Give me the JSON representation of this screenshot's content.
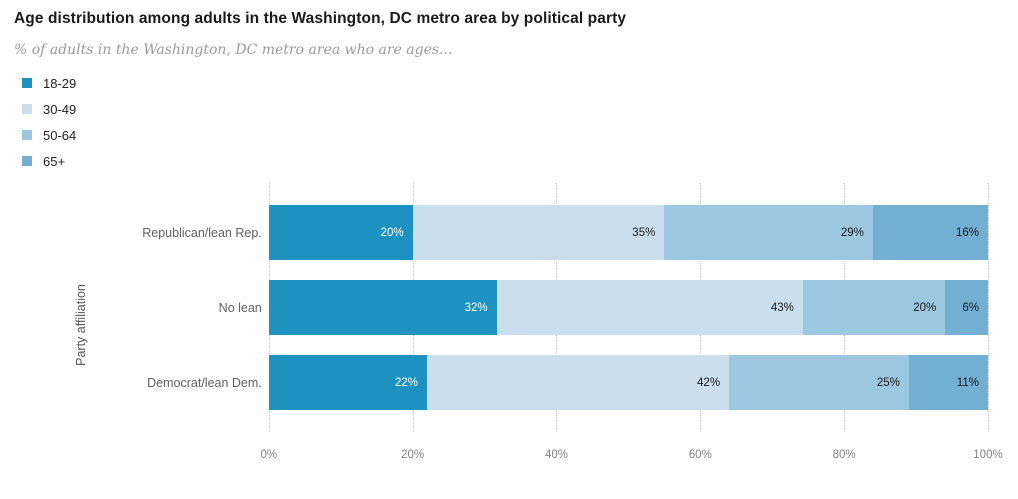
{
  "chart_data": {
    "type": "bar",
    "orientation": "horizontal-stacked",
    "title": "Age distribution among adults in the Washington, DC metro area by political party",
    "subtitle": "% of adults in the Washington, DC metro area who are ages...",
    "ylabel": "Party affiliation",
    "categories": [
      "Republican/lean Rep.",
      "No lean",
      "Democrat/lean Dem."
    ],
    "series": [
      {
        "name": "18-29",
        "color": "#1d91c0",
        "label_color": "#ffffff",
        "values": [
          20,
          32,
          22
        ]
      },
      {
        "name": "30-49",
        "color": "#cbdeee",
        "label_color": "#1a1a1a",
        "values": [
          35,
          43,
          42
        ]
      },
      {
        "name": "50-64",
        "color": "#9cc7e0",
        "label_color": "#1a1a1a",
        "values": [
          29,
          20,
          25
        ]
      },
      {
        "name": "65+",
        "color": "#72afd2",
        "label_color": "#1a1a1a",
        "values": [
          16,
          6,
          11
        ]
      }
    ],
    "value_suffix": "%",
    "xticks": [
      "0%",
      "20%",
      "40%",
      "60%",
      "80%",
      "100%"
    ],
    "xtick_positions": [
      0,
      20,
      40,
      60,
      80,
      100
    ],
    "xlim": [
      0,
      100
    ],
    "grid": "vertical-dotted",
    "legend_position": "top-left"
  }
}
